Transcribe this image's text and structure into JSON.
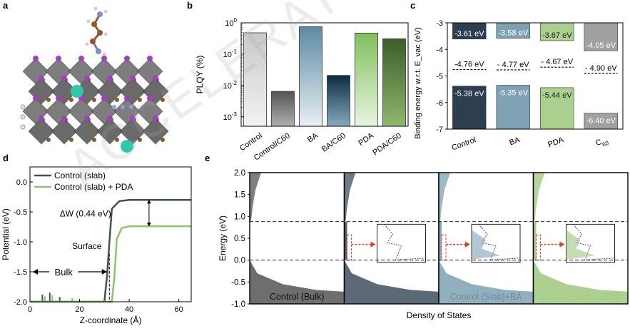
{
  "panel_labels": {
    "a": "a",
    "b": "b",
    "c": "c",
    "d": "d",
    "e": "e"
  },
  "watermark": "ACCELERATED ARTICLE PREVIEW",
  "colors": {
    "control": "#2c3e50",
    "ba": "#7ea1b3",
    "pda": "#9dc77f",
    "c60": "#a0a0a0",
    "slab": "#3f5060",
    "pda_line": "#8dc26f"
  },
  "chart_data": [
    {
      "id": "b",
      "type": "bar",
      "ylabel": "PLQY (%)",
      "yscale": "log",
      "ylim": [
        0.0005,
        1
      ],
      "yticklabels": [
        "10^0",
        "10^-1",
        "10^-2",
        "10^-3"
      ],
      "yticks": [
        1,
        0.1,
        0.01,
        0.001
      ],
      "categories": [
        "Control",
        "Control/C60",
        "BA",
        "BA/C60",
        "PDA",
        "PDA/C60"
      ],
      "values": [
        0.48,
        0.0065,
        0.75,
        0.021,
        0.47,
        0.31
      ],
      "grad_top": [
        "#f2f2f2",
        "#b0b0b0",
        "#e9eff2",
        "#85abc0",
        "#eaf5e1",
        "#8fb86e"
      ],
      "grad_bottom": [
        "#c9c9c9",
        "#555555",
        "#5c8aa3",
        "#0e2a40",
        "#7fbf5c",
        "#3b5e2a"
      ]
    },
    {
      "id": "c",
      "type": "bar",
      "ylabel": "Binding energy w.r.t. E_vac (eV)",
      "ylim": [
        -7,
        -3
      ],
      "yticks": [
        -3,
        -4,
        -5,
        -6,
        -7
      ],
      "categories": [
        "Control",
        "BA",
        "PDA",
        "C60"
      ],
      "cb_edge": [
        -3.61,
        -3.58,
        -3.67,
        -4.05
      ],
      "vb_edge": [
        -5.38,
        -5.35,
        -5.44,
        -6.4
      ],
      "fermi": [
        -4.76,
        -4.77,
        -4.67,
        -4.9
      ],
      "cb_labels": [
        "-3.61 eV",
        "-3.58 eV",
        "-3.67 eV",
        "-4.05 eV"
      ],
      "vb_labels": [
        "-5.38 eV",
        "-5.35 eV",
        "-5.44 eV",
        "-6.40 eV"
      ],
      "fermi_labels": [
        "-4.76 eV",
        "- 4.77 eV",
        "- 4.67 eV",
        "- 4.90 eV"
      ],
      "fill_colors": [
        "#2c3e50",
        "#7ea1b3",
        "#a9d08e",
        "#a0a0a0"
      ]
    },
    {
      "id": "d",
      "type": "line",
      "xlabel": "Z-coordinate (Å)",
      "ylabel": "Potential (eV)",
      "xlim": [
        0,
        65
      ],
      "ylim": [
        -2.0,
        0.25
      ],
      "xticks": [
        0,
        20,
        40,
        60
      ],
      "yticks": [
        0.0,
        -0.5,
        -1.0,
        -1.5,
        -2.0
      ],
      "yticklabels": [
        "0.0",
        "-0.5",
        "-1.0",
        "-1.5",
        "-2.0"
      ],
      "series": [
        {
          "name": "Control (slab)",
          "color": "#3f5060",
          "x": [
            0,
            30,
            31,
            33,
            36,
            40,
            65
          ],
          "y": [
            -2.0,
            -2.0,
            -1.6,
            -0.45,
            -0.32,
            -0.3,
            -0.3
          ]
        },
        {
          "name": "Control (slab) + PDA",
          "color": "#8dc26f",
          "x": [
            0,
            33,
            34,
            35,
            37,
            40,
            65
          ],
          "y": [
            -2.0,
            -2.0,
            -1.6,
            -0.95,
            -0.77,
            -0.74,
            -0.74
          ]
        }
      ],
      "peaks": [
        {
          "x": 5,
          "h": 0.12,
          "c": "#3f5060"
        },
        {
          "x": 6,
          "h": 0.09,
          "c": "#8dc26f"
        },
        {
          "x": 8,
          "h": 0.15,
          "c": "#3f5060"
        },
        {
          "x": 9,
          "h": 0.11,
          "c": "#8dc26f"
        },
        {
          "x": 12,
          "h": 0.08,
          "c": "#3f5060"
        },
        {
          "x": 17,
          "h": 0.06,
          "c": "#8dc26f"
        }
      ],
      "annotations": {
        "dw": "ΔW (0.44 eV)",
        "surface": "Surface",
        "bulk": "Bulk"
      }
    },
    {
      "id": "e",
      "type": "area",
      "xlabel": "Density of States",
      "ylabel": "Energy (eV)",
      "ylim": [
        -1.0,
        2.0
      ],
      "yticks": [
        2.0,
        1.5,
        1.0,
        0.5,
        0.0,
        -0.5,
        -1.0
      ],
      "yticklabels": [
        "2.0",
        "1.5",
        "1.0",
        "0.5",
        "0.0",
        "-0.5",
        "-1.0"
      ],
      "reference_lines": [
        0.0,
        0.88
      ],
      "panels": [
        {
          "name": "Control (Bulk)",
          "color": "#555555",
          "label_color": "#111111"
        },
        {
          "name": "Control (Slab)",
          "color": "#3f5060",
          "label_color": "#5c6b78"
        },
        {
          "name": "Control (Slab)+BA",
          "color": "#7ea1b3",
          "label_color": "#6f8ea0"
        },
        {
          "name": "Control (Slab)+PDA",
          "color": "#9dc77f",
          "label_color": "#a4cc88"
        }
      ]
    }
  ]
}
